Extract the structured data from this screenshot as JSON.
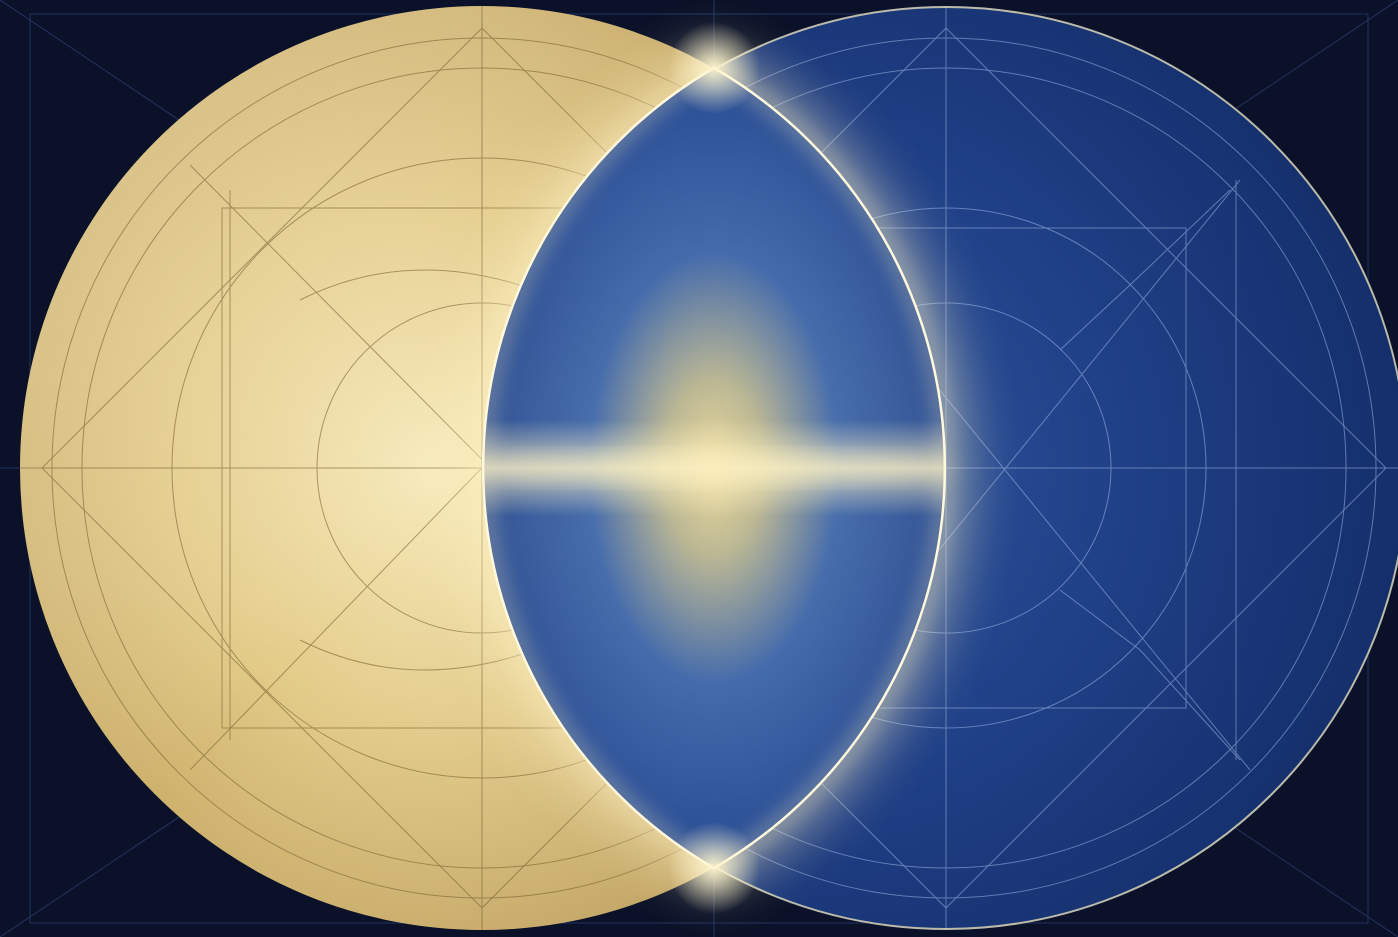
{
  "artwork": {
    "subject": "vesica-piscis",
    "palette": {
      "background": "#0a1128",
      "gold_light": "#f3e3a8",
      "gold_mid": "#d9c07a",
      "gold_dark": "#b0914c",
      "navy_light": "#2f5aa4",
      "navy_mid": "#1d3f85",
      "navy_dark": "#10265a",
      "line_gold": "#7a6232",
      "line_blue": "#9cb6e6",
      "rim": "#f4e6b8",
      "glow": "#fff3c4"
    },
    "shapes": [
      {
        "name": "gold-disc"
      },
      {
        "name": "blue-disc"
      },
      {
        "name": "lens-overlap"
      }
    ]
  }
}
